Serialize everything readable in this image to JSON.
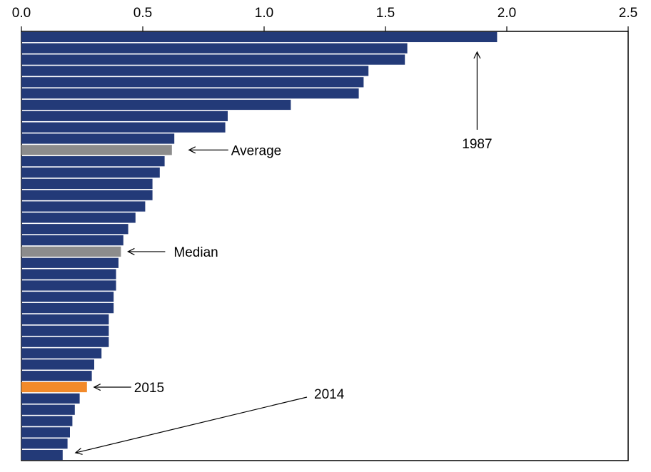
{
  "chart_data": {
    "type": "bar",
    "orientation": "horizontal",
    "title": "",
    "xlabel": "",
    "ylabel": "",
    "xlim": [
      0,
      2.5
    ],
    "x_ticks": [
      "0.0",
      "0.5",
      "1.0",
      "1.5",
      "2.0",
      "2.5"
    ],
    "x_axis_position": "top",
    "grid": false,
    "legend": "none",
    "values": [
      1.96,
      1.59,
      1.58,
      1.43,
      1.41,
      1.39,
      1.11,
      0.85,
      0.84,
      0.63,
      0.62,
      0.59,
      0.57,
      0.54,
      0.54,
      0.51,
      0.47,
      0.44,
      0.42,
      0.41,
      0.4,
      0.39,
      0.39,
      0.38,
      0.38,
      0.36,
      0.36,
      0.36,
      0.33,
      0.3,
      0.29,
      0.27,
      0.24,
      0.22,
      0.21,
      0.2,
      0.19,
      0.17
    ],
    "bar_kinds": [
      "year",
      "year",
      "year",
      "year",
      "year",
      "year",
      "year",
      "year",
      "year",
      "year",
      "average",
      "year",
      "year",
      "year",
      "year",
      "year",
      "year",
      "year",
      "year",
      "median",
      "year",
      "year",
      "year",
      "year",
      "year",
      "year",
      "year",
      "year",
      "year",
      "year",
      "year",
      "highlight",
      "year",
      "year",
      "year",
      "year",
      "year",
      "year"
    ],
    "colors": {
      "year": "#233a78",
      "average": "#8c8c8c",
      "median": "#8c8c8c",
      "highlight": "#f28a2a"
    },
    "annotations": [
      {
        "label": "1987",
        "bar_index": 0
      },
      {
        "label": "Average",
        "bar_index": 10
      },
      {
        "label": "Median",
        "bar_index": 19
      },
      {
        "label": "2015",
        "bar_index": 31
      },
      {
        "label": "2014",
        "bar_index": 37
      }
    ]
  }
}
